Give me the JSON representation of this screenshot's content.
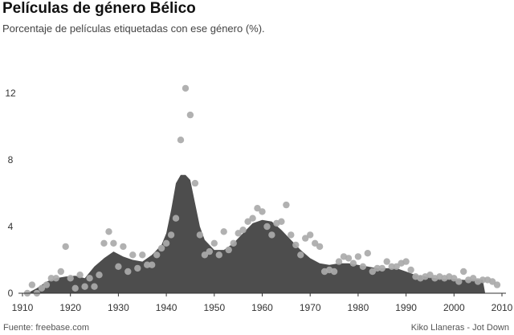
{
  "chart_data": {
    "type": "area",
    "title": "Películas de género Bélico",
    "subtitle": "Porcentaje de películas etiquetadas con ese género (%).",
    "xlabel": "",
    "ylabel": "",
    "xlim": [
      1910,
      2010
    ],
    "ylim": [
      0,
      13.5
    ],
    "x_ticks": [
      "1910",
      "1920",
      "1930",
      "1940",
      "1950",
      "1960",
      "1970",
      "1980",
      "1990",
      "2000",
      "2010"
    ],
    "y_ticks": [
      "0",
      "4",
      "8",
      "12"
    ],
    "grid": false,
    "colors": {
      "area": "#4d4d4d",
      "points": "#aaaaaa",
      "axis": "#333333"
    },
    "series": [
      {
        "kind": "area",
        "x": [
          1911,
          1913,
          1915,
          1917,
          1919,
          1921,
          1923,
          1925,
          1927,
          1929,
          1931,
          1933,
          1935,
          1937,
          1939,
          1940,
          1941,
          1942,
          1943,
          1944,
          1945,
          1946,
          1947,
          1948,
          1950,
          1952,
          1954,
          1956,
          1958,
          1960,
          1962,
          1964,
          1966,
          1968,
          1970,
          1972,
          1974,
          1976,
          1978,
          1980,
          1982,
          1984,
          1986,
          1988,
          1990,
          1992,
          1994,
          1996,
          1998,
          2000,
          2002,
          2004,
          2006,
          2006.5
        ],
        "y": [
          0.0,
          0.3,
          0.7,
          0.9,
          1.0,
          1.05,
          0.9,
          1.6,
          2.1,
          2.5,
          2.2,
          2.0,
          1.9,
          2.3,
          2.9,
          3.6,
          5.0,
          6.6,
          7.1,
          7.1,
          6.8,
          5.4,
          4.0,
          3.2,
          2.6,
          2.6,
          3.0,
          3.6,
          4.2,
          4.4,
          4.3,
          3.8,
          3.2,
          2.6,
          2.1,
          1.8,
          1.7,
          1.8,
          1.8,
          1.7,
          1.6,
          1.5,
          1.5,
          1.5,
          1.3,
          1.1,
          1.0,
          0.9,
          0.85,
          0.85,
          0.8,
          0.8,
          0.8,
          0.0
        ]
      },
      {
        "kind": "scatter",
        "x": [
          1911,
          1912,
          1913,
          1914,
          1915,
          1916,
          1917,
          1918,
          1919,
          1920,
          1921,
          1922,
          1923,
          1924,
          1925,
          1926,
          1927,
          1928,
          1929,
          1930,
          1931,
          1932,
          1933,
          1934,
          1935,
          1936,
          1937,
          1938,
          1939,
          1940,
          1941,
          1942,
          1943,
          1944,
          1945,
          1946,
          1947,
          1948,
          1949,
          1950,
          1951,
          1952,
          1953,
          1954,
          1955,
          1956,
          1957,
          1958,
          1959,
          1960,
          1961,
          1962,
          1963,
          1964,
          1965,
          1966,
          1967,
          1968,
          1969,
          1970,
          1971,
          1972,
          1973,
          1974,
          1975,
          1976,
          1977,
          1978,
          1979,
          1980,
          1981,
          1982,
          1983,
          1984,
          1985,
          1986,
          1987,
          1988,
          1989,
          1990,
          1991,
          1992,
          1993,
          1994,
          1995,
          1996,
          1997,
          1998,
          1999,
          2000,
          2001,
          2002,
          2003,
          2004,
          2005,
          2006,
          2007,
          2008,
          2009
        ],
        "y": [
          0.0,
          0.5,
          0.0,
          0.3,
          0.5,
          0.9,
          0.9,
          1.3,
          2.8,
          0.9,
          0.3,
          1.1,
          0.4,
          0.9,
          0.4,
          1.1,
          3.0,
          3.7,
          3.0,
          1.6,
          2.8,
          1.3,
          2.3,
          1.5,
          2.3,
          1.7,
          1.7,
          2.3,
          2.7,
          3.0,
          3.5,
          4.5,
          9.2,
          12.3,
          10.7,
          6.6,
          3.5,
          2.3,
          2.5,
          3.0,
          2.3,
          3.7,
          2.6,
          3.0,
          3.6,
          3.8,
          4.3,
          4.5,
          5.1,
          4.9,
          4.0,
          3.5,
          4.2,
          4.3,
          5.3,
          3.5,
          2.9,
          2.3,
          3.3,
          3.5,
          3.0,
          2.8,
          1.3,
          1.4,
          1.3,
          1.9,
          2.2,
          2.1,
          1.8,
          2.2,
          1.6,
          2.4,
          1.3,
          1.5,
          1.5,
          1.9,
          1.6,
          1.6,
          1.8,
          1.9,
          1.4,
          1.0,
          0.9,
          1.0,
          1.1,
          0.9,
          1.0,
          0.9,
          1.0,
          0.9,
          0.7,
          1.3,
          0.8,
          0.9,
          0.7,
          0.8,
          0.8,
          0.7,
          0.5
        ]
      }
    ]
  },
  "footer": {
    "source": "Fuente: freebase.com",
    "credit": "Kiko Llaneras - Jot Down"
  }
}
